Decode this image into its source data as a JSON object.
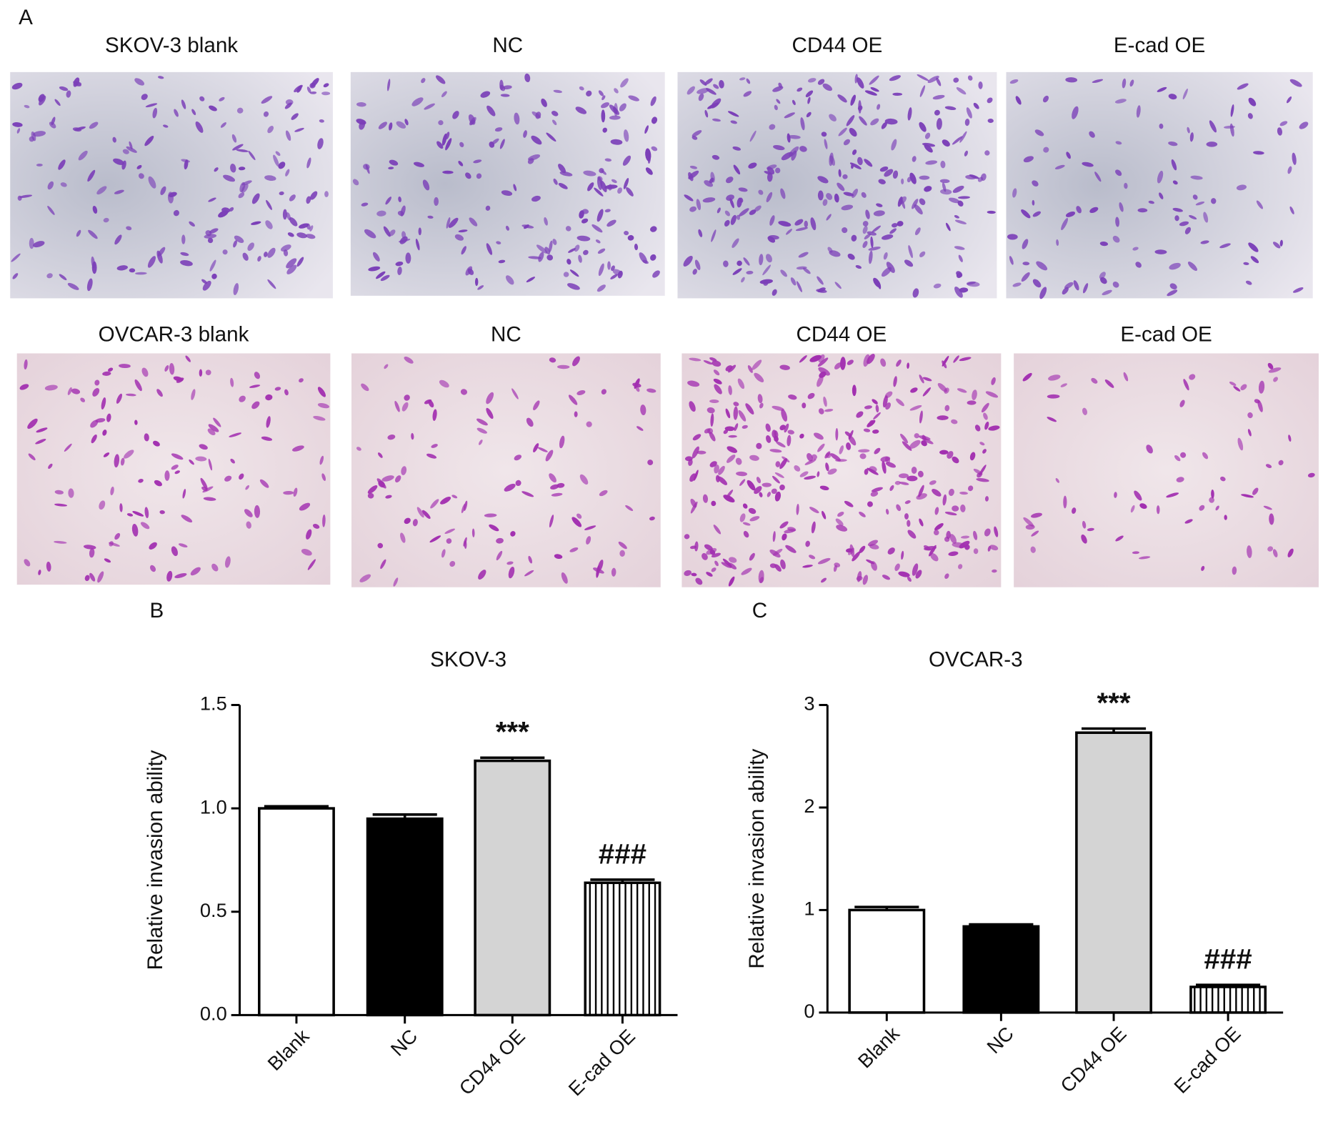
{
  "panel_a": {
    "label": "A",
    "rows": [
      [
        "SKOV-3 blank",
        "NC",
        "CD44 OE",
        "E-cad OE"
      ],
      [
        "OVCAR-3 blank",
        "NC",
        "CD44 OE",
        "E-cad OE"
      ]
    ]
  },
  "chart_data": [
    {
      "type": "bar",
      "panel": "B",
      "title": "SKOV-3",
      "ylabel": "Relative invasion ability",
      "categories": [
        "Blank",
        "NC",
        "CD44 OE",
        "E-cad OE"
      ],
      "values": [
        1.0,
        0.95,
        1.23,
        0.64
      ],
      "errors": [
        0.01,
        0.02,
        0.015,
        0.015
      ],
      "markers": [
        null,
        null,
        "***",
        "###"
      ],
      "fills": [
        "#ffffff",
        "#000000",
        "#d4d4d4",
        "hatch"
      ],
      "ylim": [
        0,
        1.5
      ],
      "yticks": [
        {
          "value": 0,
          "label": "0.0"
        },
        0.5,
        {
          "value": 1,
          "label": "1.0"
        },
        1.5
      ]
    },
    {
      "type": "bar",
      "panel": "C",
      "title": "OVCAR-3",
      "ylabel": "Relative invasion ability",
      "categories": [
        "Blank",
        "NC",
        "CD44 OE",
        "E-cad OE"
      ],
      "values": [
        1.0,
        0.84,
        2.73,
        0.25
      ],
      "errors": [
        0.03,
        0.02,
        0.04,
        0.02
      ],
      "markers": [
        null,
        null,
        "***",
        "###"
      ],
      "fills": [
        "#ffffff",
        "#000000",
        "#d4d4d4",
        "hatch"
      ],
      "ylim": [
        0,
        3
      ],
      "yticks": [
        0,
        1,
        2,
        3
      ]
    }
  ]
}
